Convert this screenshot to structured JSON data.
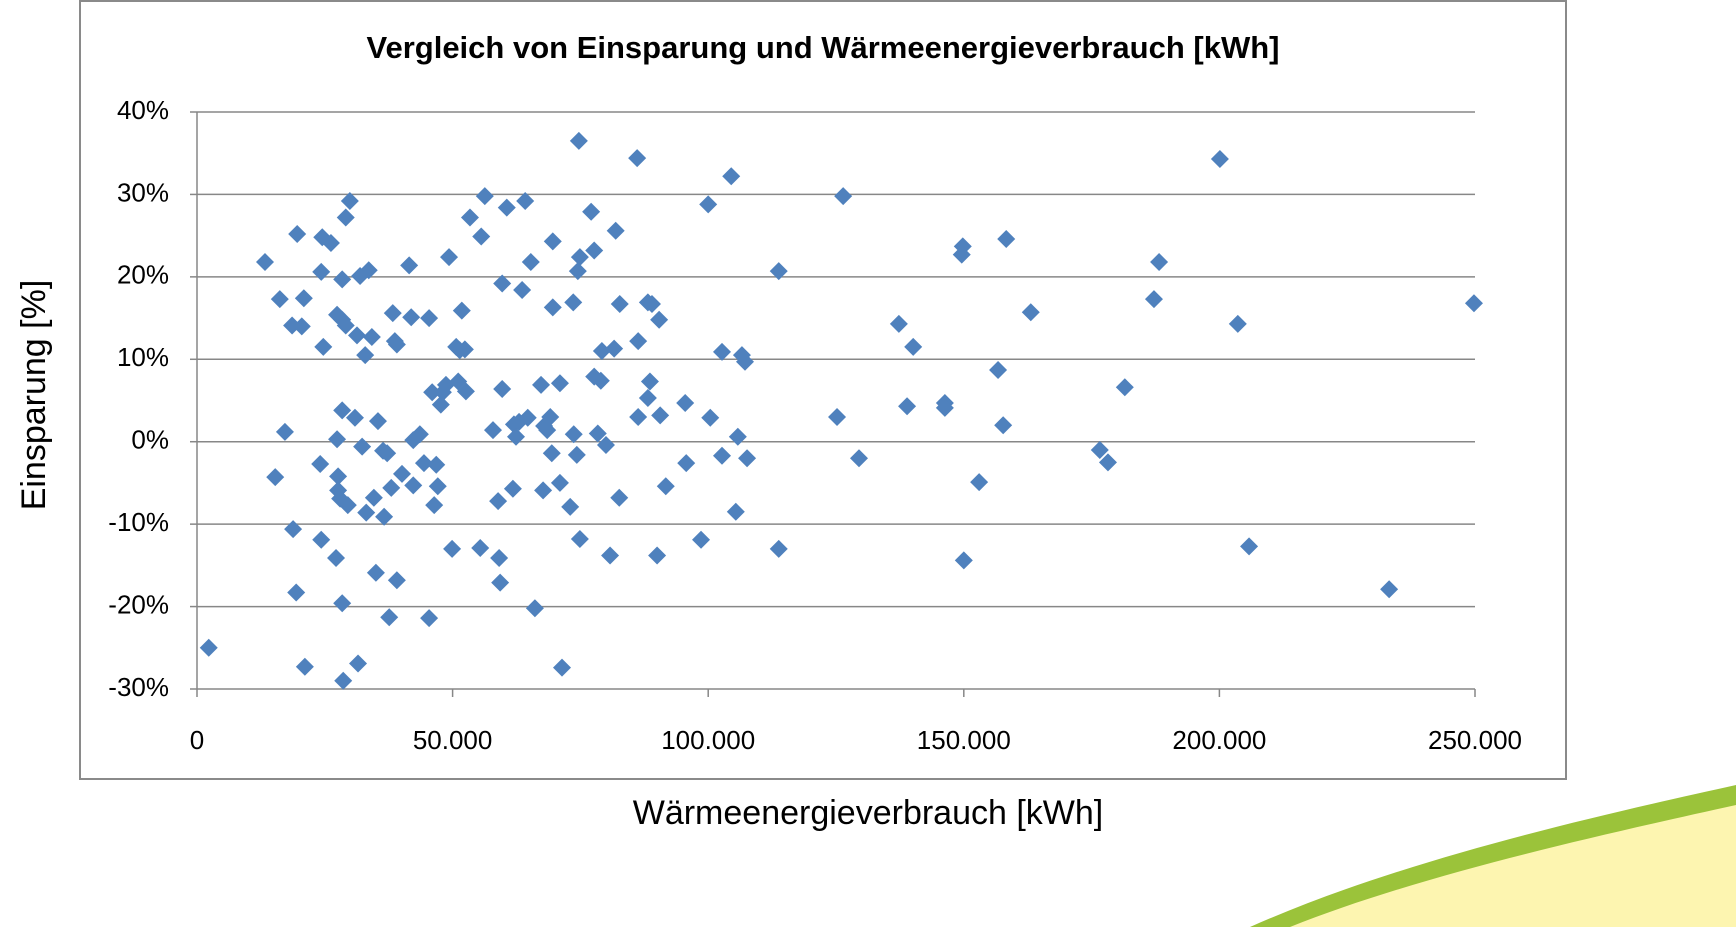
{
  "chart_data": {
    "type": "scatter",
    "title": "Vergleich von Einsparung und Wärmeenergieverbrauch [kWh]",
    "x_label": "Wärmeenergieverbrauch [kWh]",
    "y_label": "Einsparung [%]",
    "color": "#4f81bd",
    "grid": true,
    "xlim": [
      0,
      250000
    ],
    "xticks": [
      0,
      {
        "value": 50000,
        "label": "50.000"
      },
      {
        "value": 100000,
        "label": "100.000"
      },
      {
        "value": 150000,
        "label": "150.000"
      },
      {
        "value": 200000,
        "label": "200.000"
      },
      {
        "value": 250000,
        "label": "250.000"
      }
    ],
    "ylim": [
      -30,
      40
    ],
    "yticks": [
      {
        "value": -30,
        "label": "-30%"
      },
      {
        "value": -20,
        "label": "-20%"
      },
      {
        "value": -10,
        "label": "-10%"
      },
      {
        "value": 0,
        "label": "0%"
      },
      {
        "value": 10,
        "label": "10%"
      },
      {
        "value": 20,
        "label": "20%"
      },
      {
        "value": 30,
        "label": "30%"
      },
      {
        "value": 40,
        "label": "40%"
      }
    ],
    "x": [
      2300,
      13300,
      15300,
      16200,
      17200,
      18600,
      18800,
      19400,
      19600,
      20500,
      20900,
      21100,
      24100,
      24300,
      24300,
      24500,
      24700,
      26200,
      27200,
      27400,
      27400,
      27600,
      27600,
      28000,
      28400,
      28400,
      28400,
      28600,
      28400,
      29100,
      29100,
      29500,
      29900,
      30900,
      31300,
      31500,
      31900,
      32300,
      32900,
      33100,
      33600,
      34200,
      34600,
      35000,
      35400,
      36400,
      36600,
      37200,
      37600,
      38000,
      38300,
      38700,
      39100,
      39100,
      40100,
      41500,
      41900,
      42300,
      42300,
      43600,
      44400,
      45400,
      45400,
      46000,
      46400,
      46800,
      47100,
      47700,
      48100,
      48700,
      49300,
      49900,
      50700,
      51100,
      51400,
      51800,
      52400,
      52600,
      53400,
      55400,
      55600,
      56300,
      57900,
      58900,
      59100,
      59300,
      59700,
      59700,
      60600,
      61800,
      62000,
      62400,
      63000,
      63600,
      64200,
      64700,
      65300,
      66100,
      67300,
      67700,
      67900,
      68500,
      69100,
      69400,
      69600,
      69600,
      71000,
      71000,
      71400,
      73000,
      73600,
      73700,
      74300,
      74700,
      74900,
      74500,
      74900,
      77100,
      77700,
      77700,
      78400,
      79000,
      79200,
      80000,
      80800,
      81600,
      81900,
      82600,
      82700,
      86100,
      86300,
      86300,
      88200,
      88200,
      88600,
      89000,
      90000,
      90400,
      90600,
      91700,
      95500,
      95700,
      98600,
      100000,
      100400,
      102700,
      102700,
      104500,
      105400,
      105800,
      106600,
      107200,
      107600,
      113800,
      113800,
      125200,
      126400,
      129500,
      137300,
      138900,
      140100,
      146300,
      146300,
      149600,
      149800,
      150000,
      153000,
      156700,
      157700,
      158300,
      163100,
      176600,
      178200,
      181500,
      187200,
      188200,
      200100,
      203600,
      205800,
      233200,
      249800
    ],
    "values": [
      -25.0,
      21.8,
      -4.3,
      17.3,
      1.2,
      14.1,
      -10.6,
      -18.3,
      25.2,
      14.0,
      17.4,
      -27.3,
      -2.7,
      -11.9,
      20.6,
      24.8,
      11.5,
      24.1,
      -14.1,
      15.4,
      0.3,
      -4.2,
      -5.9,
      -6.9,
      14.8,
      3.8,
      -19.6,
      -29.0,
      19.7,
      27.2,
      14.1,
      -7.7,
      29.2,
      2.9,
      12.9,
      -26.9,
      20.1,
      -0.6,
      10.5,
      -8.6,
      20.8,
      12.7,
      -6.8,
      -15.9,
      2.5,
      -1.1,
      -9.1,
      -1.4,
      -21.3,
      -5.6,
      15.6,
      12.2,
      11.8,
      -16.8,
      -3.9,
      21.4,
      15.1,
      0.2,
      -5.3,
      0.9,
      -2.6,
      15.0,
      -21.4,
      6.0,
      -7.7,
      -2.8,
      -5.4,
      4.5,
      6.0,
      6.9,
      22.4,
      -13.0,
      11.5,
      7.3,
      11.1,
      15.9,
      11.2,
      6.1,
      27.2,
      -12.9,
      24.9,
      29.8,
      1.4,
      -7.2,
      -14.1,
      -17.1,
      19.2,
      6.4,
      28.4,
      -5.7,
      2.1,
      0.6,
      2.4,
      18.4,
      29.2,
      2.9,
      21.8,
      -20.2,
      6.9,
      -5.9,
      1.9,
      1.4,
      3.0,
      -1.4,
      24.3,
      16.3,
      7.1,
      -5.0,
      -27.4,
      -7.9,
      16.9,
      0.9,
      -1.6,
      36.5,
      -11.8,
      20.7,
      22.4,
      27.9,
      23.2,
      7.9,
      1.0,
      7.4,
      11.0,
      -0.4,
      -13.8,
      11.3,
      25.6,
      -6.8,
      16.7,
      34.4,
      12.2,
      3.0,
      16.9,
      5.3,
      7.3,
      16.7,
      -13.8,
      14.8,
      3.2,
      -5.4,
      4.7,
      -2.6,
      -11.9,
      28.8,
      2.9,
      10.9,
      -1.7,
      32.2,
      -8.5,
      0.6,
      10.5,
      9.7,
      -2.0,
      20.7,
      -13.0,
      3.0,
      29.8,
      -2.0,
      14.3,
      4.3,
      11.5,
      4.7,
      4.1,
      22.7,
      23.7,
      -14.4,
      -4.9,
      8.7,
      2.0,
      24.6,
      15.7,
      -1.0,
      -2.5,
      6.6,
      17.3,
      21.8,
      34.3,
      14.3,
      -12.7,
      -17.9,
      16.8
    ]
  }
}
